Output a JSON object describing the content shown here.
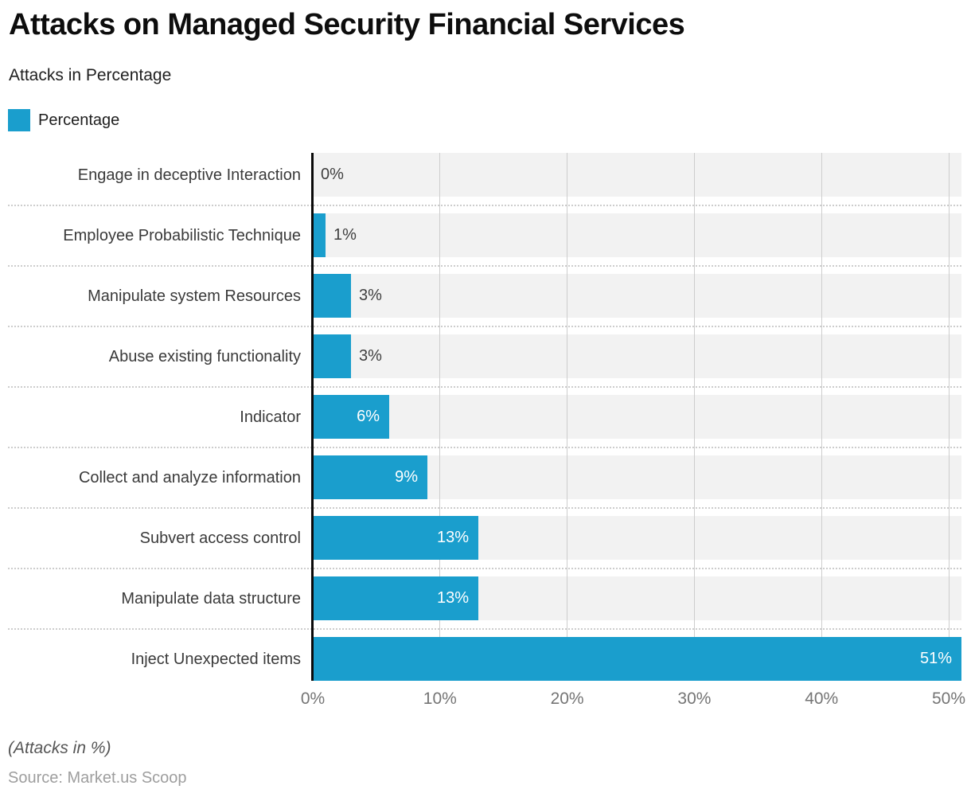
{
  "header": {
    "title": "Attacks on Managed Security Financial Services",
    "subtitle": "Attacks in Percentage"
  },
  "legend": {
    "label": "Percentage"
  },
  "footer": {
    "note": "(Attacks in %)",
    "source": "Source: Market.us Scoop"
  },
  "colors": {
    "bar": "#1a9ecd",
    "band": "#f2f2f2",
    "gridline": "#cdcdcd",
    "axis": "#0a0a0a",
    "value_outside": "#3f3f3f",
    "value_inside": "#ffffff"
  },
  "chart_data": {
    "type": "bar",
    "orientation": "horizontal",
    "title": "Attacks on Managed Security Financial Services",
    "subtitle": "Attacks in Percentage",
    "series_name": "Percentage",
    "categories": [
      "Engage in deceptive Interaction",
      "Employee Probabilistic Technique",
      "Manipulate system Resources",
      "Abuse existing functionality",
      "Indicator",
      "Collect and analyze information",
      "Subvert access control",
      "Manipulate data structure",
      "Inject Unexpected items"
    ],
    "values": [
      0,
      1,
      3,
      3,
      6,
      9,
      13,
      13,
      51
    ],
    "value_labels": [
      "0%",
      "1%",
      "3%",
      "3%",
      "6%",
      "9%",
      "13%",
      "13%",
      "51%"
    ],
    "xlabel": "",
    "ylabel": "",
    "xlim": [
      0,
      51
    ],
    "xticks": [
      {
        "value": 0,
        "label": "0%"
      },
      {
        "value": 10,
        "label": "10%"
      },
      {
        "value": 20,
        "label": "20%"
      },
      {
        "value": 30,
        "label": "30%"
      },
      {
        "value": 40,
        "label": "40%"
      },
      {
        "value": 50,
        "label": "50%"
      }
    ],
    "grid": true,
    "legend_position": "top-left"
  }
}
